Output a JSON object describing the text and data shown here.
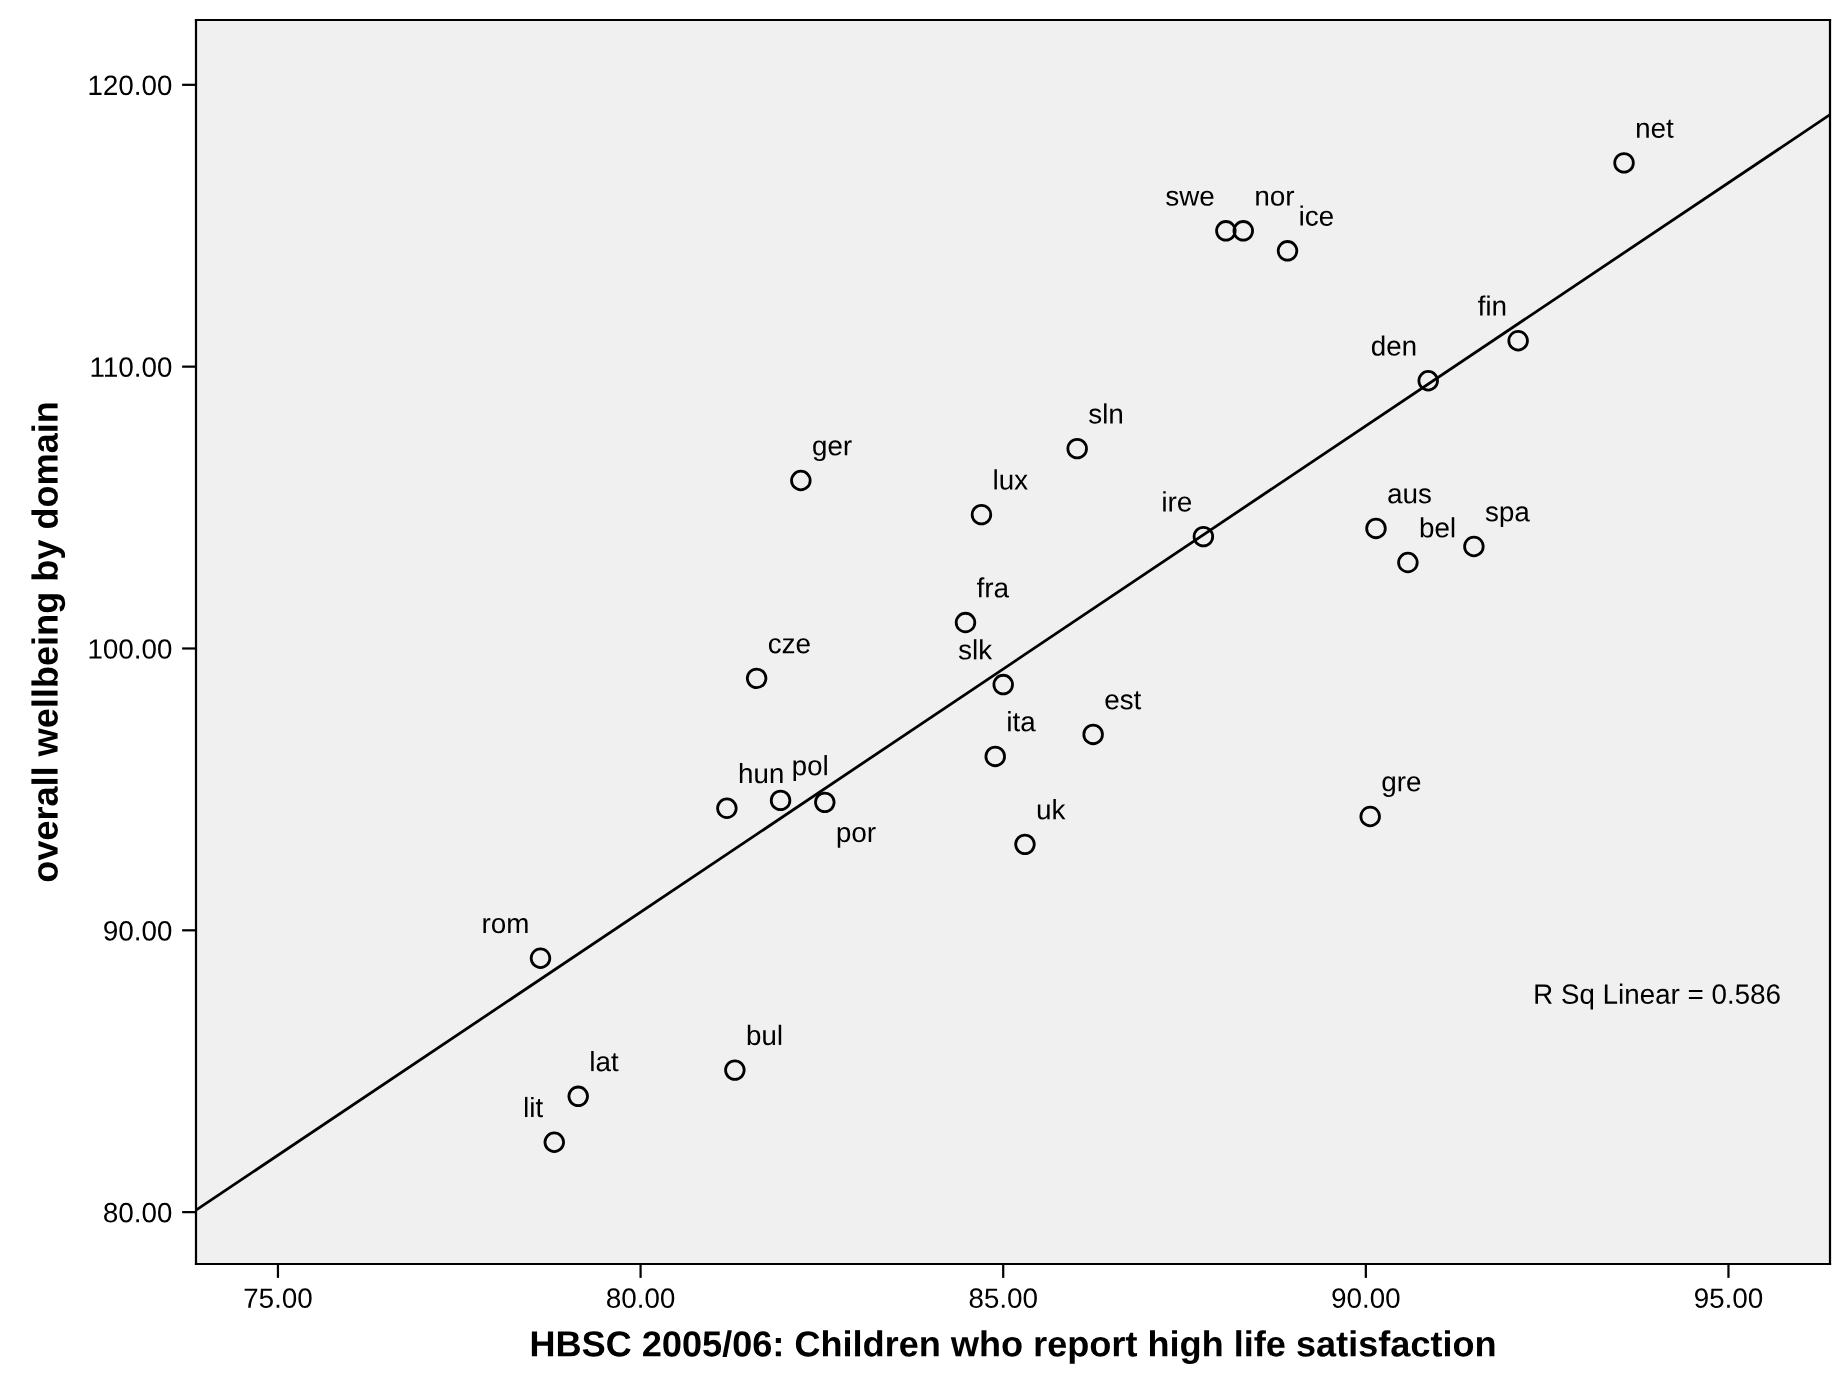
{
  "chart_data": {
    "type": "scatter",
    "xlabel": "HBSC 2005/06: Children who report high life satisfaction",
    "ylabel": "overall wellbeing by domain",
    "xlim": [
      73.87,
      96.4
    ],
    "ylim": [
      78.16,
      122.3
    ],
    "xticks": [
      {
        "value": 75,
        "label": "75.00"
      },
      {
        "value": 80,
        "label": "80.00"
      },
      {
        "value": 85,
        "label": "85.00"
      },
      {
        "value": 90,
        "label": "90.00"
      },
      {
        "value": 95,
        "label": "95.00"
      }
    ],
    "yticks": [
      {
        "value": 80,
        "label": "80.00"
      },
      {
        "value": 90,
        "label": "90.00"
      },
      {
        "value": 100,
        "label": "100.00"
      },
      {
        "value": 110,
        "label": "110.00"
      },
      {
        "value": 120,
        "label": "120.00"
      }
    ],
    "grid": false,
    "marker": "circle",
    "series": [
      {
        "color": "#000000",
        "x": [
          93.56,
          88.31,
          88.07,
          88.92,
          92.1,
          90.86,
          86.02,
          82.21,
          84.7,
          87.76,
          90.14,
          91.49,
          90.58,
          84.48,
          81.6,
          85.0,
          86.24,
          84.89,
          90.06,
          81.93,
          82.54,
          81.19,
          85.3,
          78.62,
          81.3,
          79.14,
          78.81
        ],
        "values": [
          117.23,
          114.82,
          114.82,
          114.11,
          110.92,
          109.5,
          107.09,
          105.96,
          104.75,
          103.97,
          104.26,
          103.62,
          103.05,
          100.92,
          98.94,
          98.72,
          96.95,
          96.17,
          94.04,
          94.61,
          94.54,
          94.33,
          93.05,
          89.01,
          85.04,
          84.11,
          82.48
        ],
        "value_labels": [
          "net",
          "nor",
          "swe",
          "ice",
          "fin",
          "den",
          "sln",
          "ger",
          "lux",
          "ire",
          "aus",
          "spa",
          "bel",
          "fra",
          "cze",
          "slk",
          "est",
          "ita",
          "gre",
          "pol",
          "por",
          "hun",
          "uk",
          "rom",
          "bul",
          "lat",
          "lit"
        ]
      },
      {
        "type": "line",
        "color": "#000000",
        "marker": "none",
        "line_style": "solid",
        "x": [
          73.87,
          96.4
        ],
        "values": [
          80.07,
          118.94
        ]
      }
    ],
    "annotations": [
      "R Sq Linear = 0.586"
    ]
  }
}
